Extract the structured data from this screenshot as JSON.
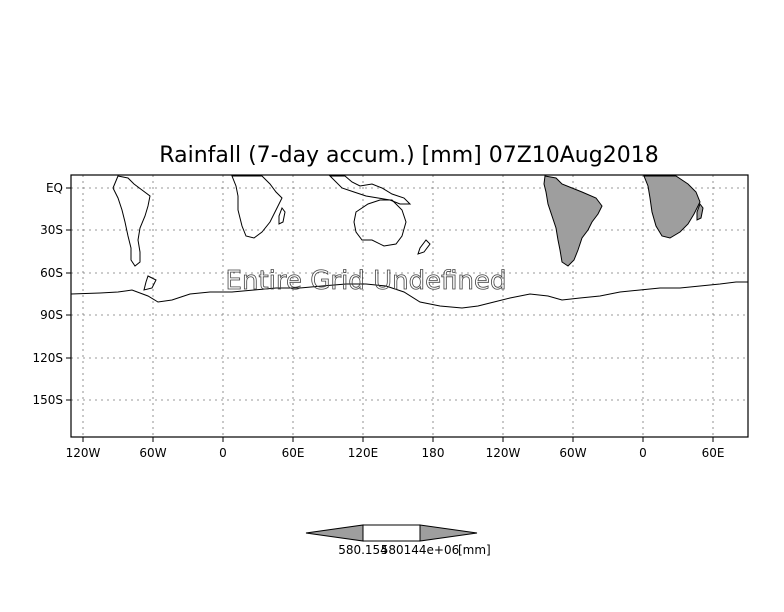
{
  "title": "Rainfall (7-day accum.) [mm] 07Z10Aug2018",
  "overlay_text": "Entire Grid Undefined",
  "lat_labels": [
    "EQ",
    "30S",
    "60S",
    "90S",
    "120S",
    "150S"
  ],
  "lon_labels": [
    "120W",
    "60W",
    "0",
    "60E",
    "120E",
    "180",
    "120W",
    "60W",
    "0",
    "60E"
  ],
  "colorbar": {
    "min_label": "580.154",
    "max_label": "580144e+06",
    "unit": "[mm]"
  },
  "colors": {
    "shaded_land": "#9e9e9e",
    "coastline": "#000000",
    "grid": "#777777"
  }
}
